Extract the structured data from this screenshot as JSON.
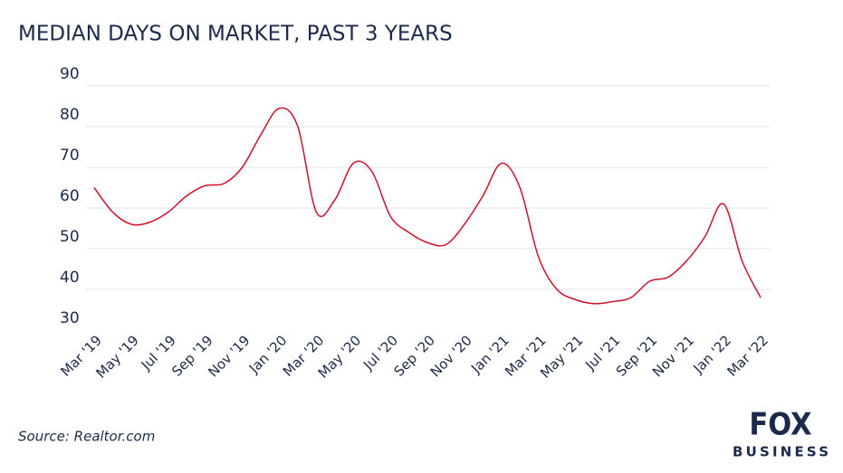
{
  "chart_data": {
    "type": "line",
    "title": "MEDIAN DAYS ON MARKET, PAST 3 YEARS",
    "source": "Source: Realtor.com",
    "logo_top": "FOX",
    "logo_bottom": "BUSINESS",
    "categories": [
      "Mar '19",
      null,
      "May '19",
      null,
      "Jul '19",
      null,
      "Sep '19",
      null,
      "Nov '19",
      null,
      "Jan '20",
      null,
      "Mar '20",
      null,
      "May '20",
      null,
      "Jul '20",
      null,
      "Sep '20",
      null,
      "Nov '20",
      null,
      "Jan '21",
      null,
      "Mar '21",
      null,
      "May '21",
      null,
      "Jul '21",
      null,
      "Sep '21",
      null,
      "Nov '21",
      null,
      "Jan '22",
      null,
      "Mar '22"
    ],
    "series": [
      {
        "name": "Median days on market",
        "color": "#d0102a",
        "values": [
          65,
          59,
          56,
          56.5,
          59,
          63,
          65.5,
          66,
          70,
          78,
          84.5,
          80,
          59,
          62,
          71,
          69,
          58,
          54,
          51.5,
          51,
          56,
          63,
          71,
          65,
          48,
          40,
          37.5,
          36.5,
          37,
          38,
          42,
          43,
          47,
          53,
          61,
          47,
          38
        ]
      }
    ],
    "ylim": [
      30,
      90
    ],
    "yticks": [
      30,
      40,
      50,
      60,
      70,
      80,
      90
    ],
    "grid": true
  }
}
